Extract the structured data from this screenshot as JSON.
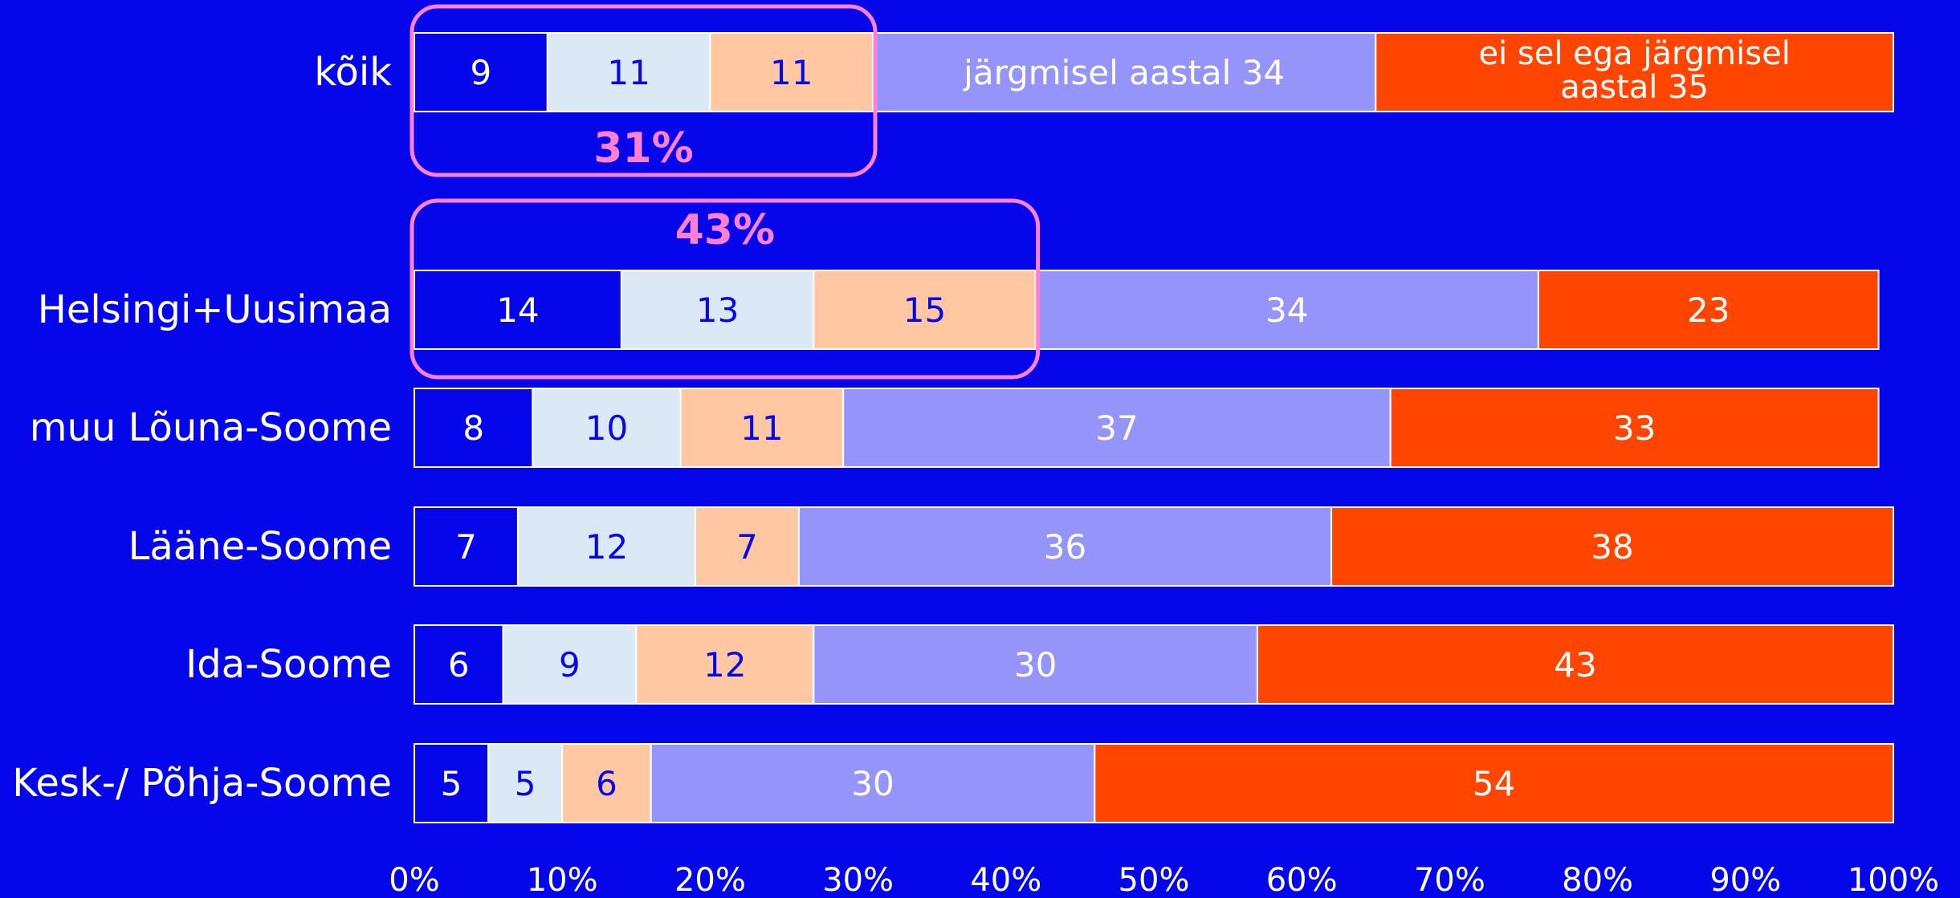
{
  "chart_data": {
    "type": "bar",
    "orientation": "horizontal",
    "stacked": true,
    "categories": [
      "kõik",
      "Helsingi+Uusimaa",
      "muu Lõuna-Soome",
      "Lääne-Soome",
      "Ida-Soome",
      "Kesk-/ Põhja-Soome"
    ],
    "series": [
      {
        "values": [
          9,
          14,
          8,
          7,
          6,
          5
        ],
        "color": "#0606ea",
        "text_color": "#ffffff"
      },
      {
        "values": [
          11,
          13,
          10,
          12,
          9,
          5
        ],
        "color": "#dbe8f5",
        "text_color": "#0606ea"
      },
      {
        "values": [
          11,
          15,
          11,
          7,
          12,
          6
        ],
        "color": "#ffc8a3",
        "text_color": "#0606ea"
      },
      {
        "values": [
          34,
          34,
          37,
          36,
          30,
          30
        ],
        "color": "#9494fb",
        "text_color": "#ffffff"
      },
      {
        "values": [
          35,
          23,
          33,
          38,
          43,
          54
        ],
        "color": "#ff4500",
        "text_color": "#ffffff"
      }
    ],
    "data_labels": [
      [
        "9",
        "11",
        "11",
        "järgmisel aastal 34",
        "ei sel ega järgmisel aastal 35"
      ],
      [
        "14",
        "13",
        "15",
        "34",
        "23"
      ],
      [
        "8",
        "10",
        "11",
        "37",
        "33"
      ],
      [
        "7",
        "12",
        "7",
        "36",
        "38"
      ],
      [
        "6",
        "9",
        "12",
        "30",
        "43"
      ],
      [
        "5",
        "5",
        "6",
        "30",
        "54"
      ]
    ],
    "xlim": [
      0,
      100
    ],
    "x_ticks": [
      "0%",
      "10%",
      "20%",
      "30%",
      "40%",
      "50%",
      "60%",
      "70%",
      "80%",
      "90%",
      "100%"
    ],
    "highlights": [
      {
        "category": "kõik",
        "label": "31%",
        "label_position": "below"
      },
      {
        "category": "Helsingi+Uusimaa",
        "label": "43%",
        "label_position": "above"
      }
    ],
    "highlight_color": "#ff80d2",
    "title": "",
    "xlabel": "",
    "ylabel": "",
    "grid": false,
    "legend": "none"
  }
}
